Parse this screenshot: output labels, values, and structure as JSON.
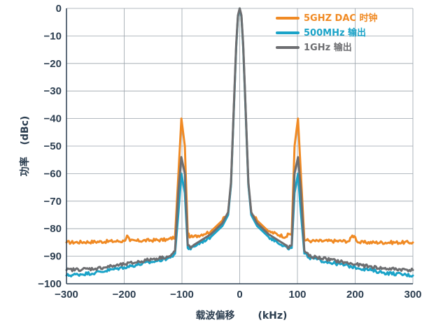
{
  "chart_data": {
    "type": "line",
    "xlabel": "载波偏移",
    "xlabel_unit": "(kHz)",
    "ylabel": "功率",
    "ylabel_unit": "(dBc)",
    "xlim": [
      -300,
      300
    ],
    "ylim": [
      -100,
      0
    ],
    "xticks": [
      -300,
      -200,
      -100,
      0,
      100,
      200,
      300
    ],
    "yticks": [
      0,
      -10,
      -20,
      -30,
      -40,
      -50,
      -60,
      -70,
      -80,
      -90,
      -100
    ],
    "grid": true,
    "legend_position": "top-right",
    "series": [
      {
        "name": "5GHZ DAC 时钟",
        "color": "#f08a24",
        "x": [
          -300,
          -200,
          -195,
          -190,
          -125,
          -112,
          -106,
          -101,
          -95,
          -90,
          -85,
          -80,
          -50,
          -30,
          -20,
          -15,
          -12,
          -9,
          -6,
          -3,
          0,
          3,
          6,
          9,
          12,
          15,
          20,
          30,
          50,
          80,
          85,
          90,
          95,
          101,
          106,
          112,
          125,
          190,
          195,
          200,
          205,
          300
        ],
        "y": [
          -85,
          -84.5,
          -82.5,
          -84.5,
          -84,
          -83,
          -60,
          -40,
          -50,
          -82,
          -83,
          -83,
          -81,
          -77,
          -74,
          -64,
          -47,
          -30,
          -14,
          -3,
          0,
          -3,
          -14,
          -30,
          -47,
          -64,
          -74,
          -77,
          -81,
          -83,
          -82,
          -82,
          -50,
          -40,
          -60,
          -84,
          -84.5,
          -84.5,
          -82.5,
          -83,
          -85,
          -85
        ]
      },
      {
        "name": "500MHz 输出",
        "color": "#1aa3c8",
        "x": [
          -300,
          -250,
          -200,
          -150,
          -120,
          -112,
          -106,
          -101,
          -95,
          -90,
          -85,
          -80,
          -50,
          -30,
          -20,
          -15,
          -12,
          -9,
          -6,
          -3,
          0,
          3,
          6,
          9,
          12,
          15,
          20,
          30,
          50,
          80,
          85,
          90,
          95,
          101,
          106,
          112,
          120,
          150,
          200,
          250,
          300
        ],
        "y": [
          -97,
          -96,
          -94,
          -92,
          -90.5,
          -89,
          -74,
          -60,
          -67,
          -87,
          -87.5,
          -86.5,
          -83,
          -79,
          -75,
          -64,
          -47,
          -30,
          -14,
          -3,
          0,
          -3,
          -14,
          -30,
          -47,
          -64,
          -75,
          -79,
          -83,
          -86.5,
          -87.5,
          -87,
          -67,
          -60,
          -74,
          -89,
          -90.5,
          -92,
          -94,
          -96,
          -97
        ]
      },
      {
        "name": "1GHz 输出",
        "color": "#6d6e71",
        "x": [
          -300,
          -250,
          -200,
          -150,
          -120,
          -112,
          -106,
          -101,
          -95,
          -90,
          -85,
          -80,
          -50,
          -30,
          -20,
          -15,
          -12,
          -9,
          -6,
          -3,
          0,
          3,
          6,
          9,
          12,
          15,
          20,
          30,
          50,
          80,
          85,
          90,
          95,
          101,
          106,
          112,
          120,
          150,
          200,
          250,
          300
        ],
        "y": [
          -95,
          -94.5,
          -93,
          -91,
          -90,
          -88,
          -66,
          -54,
          -60,
          -86,
          -87,
          -86,
          -82,
          -78,
          -74,
          -63,
          -46,
          -29,
          -13,
          -2.5,
          0,
          -2.5,
          -13,
          -29,
          -46,
          -63,
          -74,
          -78,
          -82,
          -86,
          -87,
          -86,
          -60,
          -54,
          -66,
          -88,
          -90,
          -91,
          -93,
          -94.5,
          -95
        ]
      }
    ]
  }
}
